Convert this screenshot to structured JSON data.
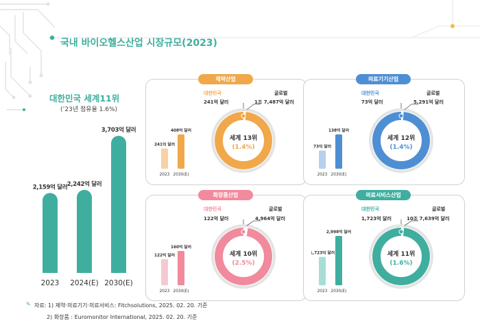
{
  "header": {
    "title": "국내 바이오헬스산업 시장규모(2023)"
  },
  "colors": {
    "accent": "#3fae9f",
    "pharma": "#f0a84a",
    "device": "#4e8fd3",
    "cosmetic": "#f08a9c",
    "service": "#3fae9f"
  },
  "chart_data": [
    {
      "type": "bar",
      "title": "대한민국 세계11위",
      "subtitle": "(’23년 점유율 1.6%)",
      "categories": [
        "2023",
        "2024(E)",
        "2030(E)"
      ],
      "values": [
        2159,
        2242,
        3703
      ],
      "data_labels": [
        "2,159억 달러",
        "2,242억 달러",
        "3,703억 달러"
      ],
      "unit": "억 달러",
      "ylim": [
        0,
        4000
      ]
    },
    {
      "type": "bar",
      "panel": "pharma",
      "title": "제약산업",
      "categories": [
        "2023",
        "2030(E)"
      ],
      "values": [
        241,
        408
      ],
      "data_labels": [
        "241억 달러",
        "408억 달러"
      ],
      "ring": {
        "korea_label": "대한민국",
        "korea_value": "241억 달러",
        "global_label": "글로벌",
        "global_value": "1조 7,487억 달러",
        "rank": "세계 13위",
        "share": "(1.4%)",
        "share_pct": 1.4
      }
    },
    {
      "type": "bar",
      "panel": "device",
      "title": "의료기기산업",
      "categories": [
        "2023",
        "2030(E)"
      ],
      "values": [
        73,
        138
      ],
      "data_labels": [
        "73억 달러",
        "138억 달러"
      ],
      "ring": {
        "korea_label": "대한민국",
        "korea_value": "73억 달러",
        "global_label": "글로벌",
        "global_value": "5,291억 달러",
        "rank": "세계 12위",
        "share": "(1.4%)",
        "share_pct": 1.4
      }
    },
    {
      "type": "bar",
      "panel": "cosmetic",
      "title": "화장품산업",
      "categories": [
        "2023",
        "2030(E)"
      ],
      "values": [
        122,
        160
      ],
      "data_labels": [
        "122억 달러",
        "160억 달러"
      ],
      "ring": {
        "korea_label": "대한민국",
        "korea_value": "122억 달러",
        "global_label": "글로벌",
        "global_value": "4,964억 달러",
        "rank": "세계 10위",
        "share": "(2.5%)",
        "share_pct": 2.5
      }
    },
    {
      "type": "bar",
      "panel": "service",
      "title": "의료서비스산업",
      "categories": [
        "2023",
        "2030(E)"
      ],
      "values": [
        1723,
        2998
      ],
      "data_labels": [
        "1,723억 달러",
        "2,998억 달러"
      ],
      "ring": {
        "korea_label": "대한민국",
        "korea_value": "1,723억 달러",
        "global_label": "글로벌",
        "global_value": "10조 7,639억 달러",
        "rank": "세계 11위",
        "share": "(1.6%)",
        "share_pct": 1.6
      }
    }
  ],
  "footnotes": {
    "line1": "자료: 1) 제약·의료기기·의료서비스: Fitchsolutions, 2025. 02. 20. 기준",
    "line2": "2) 화장품 : Euromonitor International, 2025. 02. 20. 기준"
  }
}
